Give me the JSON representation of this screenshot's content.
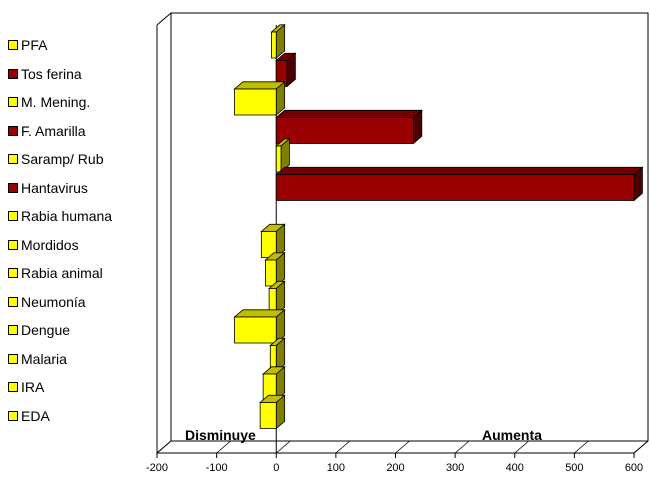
{
  "chart_data": {
    "type": "bar",
    "orientation": "horizontal",
    "categories": [
      "PFA",
      "Tos ferina",
      "M. Mening.",
      "F. Amarilla",
      "Saramp/ Rub",
      "Hantavirus",
      "Rabia humana",
      "Mordidos",
      "Rabia animal",
      "Neumonía",
      "Dengue",
      "Malaria",
      "IRA",
      "EDA"
    ],
    "values": [
      -8,
      18,
      -70,
      230,
      8,
      600,
      0,
      -25,
      -18,
      -12,
      -70,
      -10,
      -22,
      -27
    ],
    "bar_colors": [
      "#FFFF00",
      "#990000",
      "#FFFF00",
      "#990000",
      "#FFFF00",
      "#990000",
      "#FFFF00",
      "#FFFF00",
      "#FFFF00",
      "#FFFF00",
      "#FFFF00",
      "#FFFF00",
      "#FFFF00",
      "#FFFF00"
    ],
    "xlim": [
      -200,
      600
    ],
    "xticks": [
      "-200",
      "-100",
      "0",
      "100",
      "200",
      "300",
      "400",
      "500",
      "600"
    ],
    "annotations": {
      "left": "Disminuye",
      "right": "Aumenta"
    },
    "grid": "vertical",
    "legend_position": "left"
  }
}
